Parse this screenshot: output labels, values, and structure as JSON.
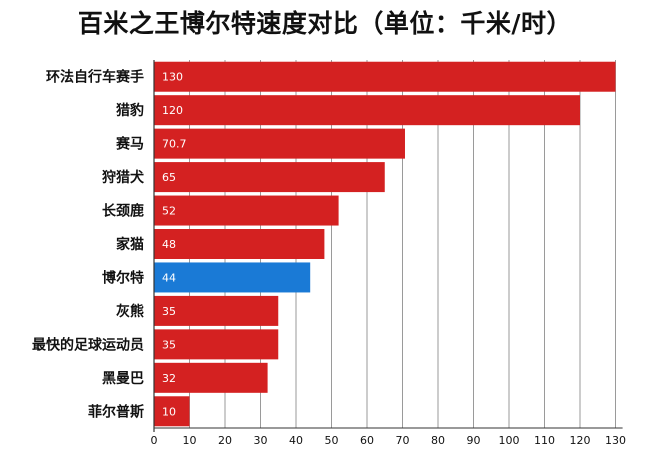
{
  "chart_data": {
    "type": "bar",
    "orientation": "horizontal",
    "title": "百米之王博尔特速度对比（单位：千米/时）",
    "categories": [
      "环法自行车赛手",
      "猎豹",
      "赛马",
      "狩猎犬",
      "长颈鹿",
      "家猫",
      "博尔特",
      "灰熊",
      "最快的足球运动员",
      "黑曼巴",
      "菲尔普斯"
    ],
    "values": [
      130,
      120,
      70.7,
      65,
      52,
      48,
      44,
      35,
      35,
      32,
      10
    ],
    "value_labels": [
      "130",
      "120",
      "70.7",
      "65",
      "52",
      "48",
      "44",
      "35",
      "35",
      "32",
      "10"
    ],
    "xlim": [
      0,
      132
    ],
    "xticks": [
      0,
      10,
      20,
      30,
      40,
      50,
      60,
      70,
      80,
      90,
      100,
      110,
      120,
      130
    ],
    "xlabel": "",
    "ylabel": "",
    "grid": true,
    "legend": "none",
    "highlight_category": "博尔特",
    "colors": {
      "bar": "#d42121",
      "highlight": "#1a7ad6",
      "grid": "#9a9a9a",
      "axis": "#333333",
      "text": "#111111",
      "value_label": "#ffffff"
    }
  }
}
